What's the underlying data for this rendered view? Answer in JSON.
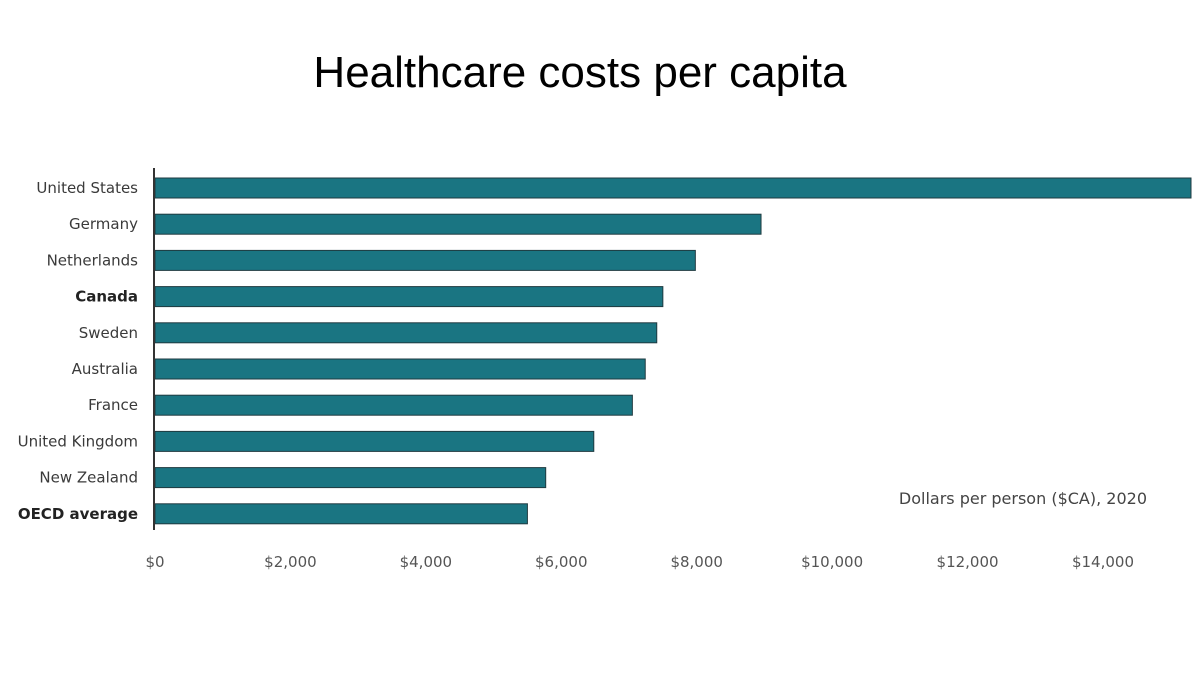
{
  "chart_data": {
    "type": "bar",
    "orientation": "horizontal",
    "title": "Healthcare costs per capita",
    "xlabel": "Dollars per person ($CA), 2020",
    "ylabel": "",
    "categories": [
      "United States",
      "Germany",
      "Netherlands",
      "Canada",
      "Sweden",
      "Australia",
      "France",
      "United Kingdom",
      "New Zealand",
      "OECD average"
    ],
    "bold_categories": [
      "Canada",
      "OECD average"
    ],
    "values": [
      15300,
      8950,
      7980,
      7500,
      7410,
      7240,
      7050,
      6480,
      5770,
      5500
    ],
    "xlim": [
      0,
      15300
    ],
    "x_ticks": [
      0,
      2000,
      4000,
      6000,
      8000,
      10000,
      12000,
      14000
    ],
    "x_tick_labels": [
      "$0",
      "$2,000",
      "$4,000",
      "$6,000",
      "$8,000",
      "$10,000",
      "$12,000",
      "$14,000"
    ],
    "grid": false,
    "bar_color": "#1a7582",
    "bar_edge_color": "#1f3a40"
  }
}
